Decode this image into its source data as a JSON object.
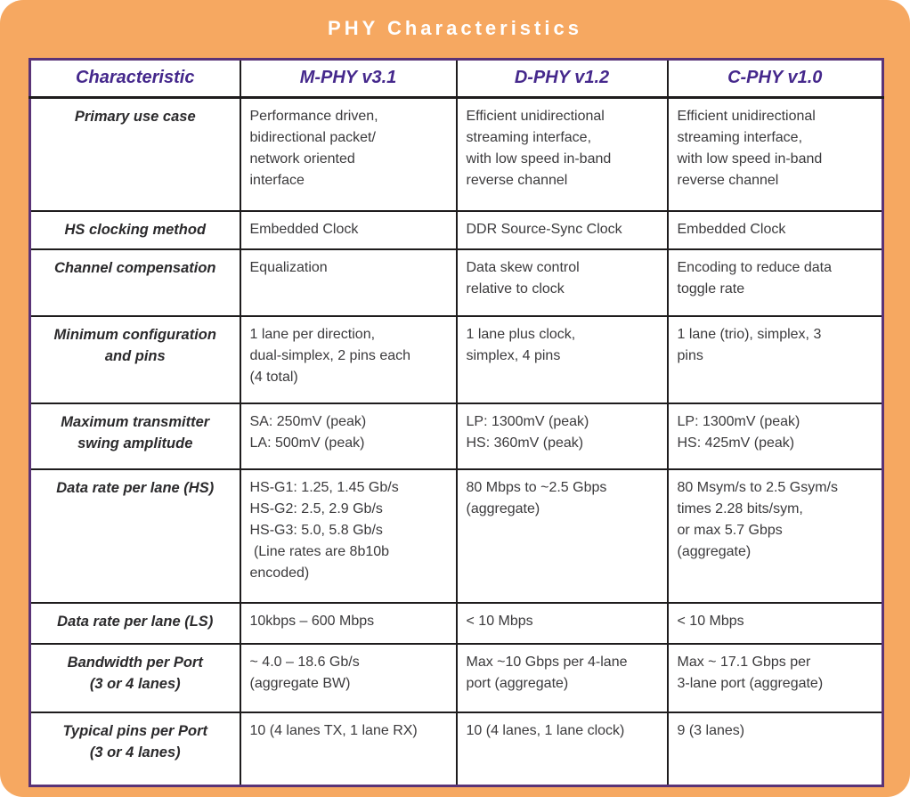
{
  "title": "PHY Characteristics",
  "colors": {
    "frame_orange": "#F6A861",
    "outer_border_purple": "#5A3377",
    "header_text_purple": "#45288C",
    "grid_black": "#1E1C1D",
    "body_text": "#3B3A3C"
  },
  "table": {
    "columns": [
      "Characteristic",
      "M-PHY v3.1",
      "D-PHY v1.2",
      "C-PHY v1.0"
    ],
    "rows": [
      {
        "label": "Primary use case",
        "cells": [
          "Performance driven,\nbidirectional packet/\nnetwork oriented\ninterface",
          "Efficient unidirectional\nstreaming interface,\nwith low speed in-band\nreverse channel",
          "Efficient unidirectional\nstreaming interface,\nwith low speed in-band\nreverse channel"
        ]
      },
      {
        "label": "HS clocking method",
        "cells": [
          "Embedded Clock",
          "DDR Source-Sync Clock",
          "Embedded Clock"
        ]
      },
      {
        "label": "Channel compensation",
        "cells": [
          "Equalization",
          "Data skew control\nrelative to clock",
          "Encoding to reduce data\ntoggle rate"
        ]
      },
      {
        "label": "Minimum configuration\nand pins",
        "cells": [
          "1 lane per direction,\ndual-simplex, 2 pins each\n(4 total)",
          "1 lane plus clock,\nsimplex, 4 pins",
          "1 lane (trio), simplex, 3\npins"
        ]
      },
      {
        "label": "Maximum transmitter\nswing amplitude",
        "cells": [
          "SA: 250mV (peak)\nLA: 500mV (peak)",
          "LP: 1300mV (peak)\nHS: 360mV (peak)",
          "LP: 1300mV (peak)\nHS: 425mV (peak)"
        ]
      },
      {
        "label": "Data rate per lane (HS)",
        "cells": [
          "HS-G1: 1.25, 1.45 Gb/s\nHS-G2: 2.5, 2.9 Gb/s\nHS-G3: 5.0, 5.8 Gb/s\n (Line rates are 8b10b\nencoded)",
          "80 Mbps to ~2.5 Gbps\n(aggregate)",
          "80 Msym/s to 2.5 Gsym/s\ntimes 2.28 bits/sym,\nor max 5.7 Gbps\n(aggregate)"
        ]
      },
      {
        "label": "Data rate per lane (LS)",
        "cells": [
          "10kbps – 600 Mbps",
          "< 10 Mbps",
          "< 10 Mbps"
        ]
      },
      {
        "label": "Bandwidth per Port\n(3 or 4 lanes)",
        "cells": [
          "~ 4.0 – 18.6 Gb/s\n(aggregate BW)",
          "Max ~10 Gbps per 4-lane\nport (aggregate)",
          "Max ~ 17.1 Gbps per\n3-lane port (aggregate)"
        ]
      },
      {
        "label": "Typical pins per Port\n(3 or 4 lanes)",
        "cells": [
          "10 (4 lanes TX, 1 lane RX)",
          "10 (4 lanes, 1 lane clock)",
          "9 (3 lanes)"
        ]
      }
    ]
  }
}
